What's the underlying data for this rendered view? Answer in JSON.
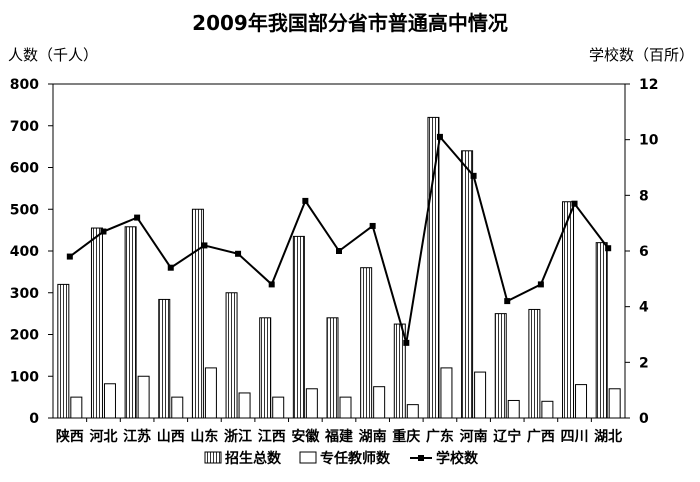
{
  "chart_data": {
    "type": "bar",
    "title": "2009年我国部分省市普通高中情况",
    "ylabel_left": "人数（千人）",
    "ylabel_right": "学校数（百所）",
    "ylim_left": [
      0,
      800
    ],
    "ylim_right": [
      0,
      12
    ],
    "yticks_left": [
      "0",
      "100",
      "200",
      "300",
      "400",
      "500",
      "600",
      "700",
      "800"
    ],
    "yticks_right": [
      "0",
      "2",
      "4",
      "6",
      "8",
      "10",
      "12"
    ],
    "categories": [
      "陕西",
      "河北",
      "江苏",
      "山西",
      "山东",
      "浙江",
      "江西",
      "安徽",
      "福建",
      "湖南",
      "重庆",
      "广东",
      "河南",
      "辽宁",
      "广西",
      "四川",
      "湖北"
    ],
    "series": [
      {
        "name": "招生总数",
        "type": "bar",
        "axis": "left",
        "values": [
          320,
          455,
          458,
          284,
          500,
          300,
          240,
          435,
          240,
          360,
          225,
          720,
          640,
          250,
          260,
          518,
          420
        ]
      },
      {
        "name": "专任教师数",
        "type": "bar",
        "axis": "left",
        "values": [
          50,
          82,
          100,
          50,
          120,
          60,
          50,
          70,
          50,
          75,
          32,
          120,
          110,
          42,
          40,
          80,
          70
        ]
      },
      {
        "name": "学校数",
        "type": "line",
        "axis": "right",
        "values": [
          5.8,
          6.7,
          7.2,
          5.4,
          6.2,
          5.9,
          4.8,
          7.8,
          6.0,
          6.9,
          2.7,
          10.1,
          8.7,
          4.2,
          4.8,
          7.7,
          6.1
        ]
      }
    ],
    "grid": false,
    "legend_position": "bottom"
  }
}
